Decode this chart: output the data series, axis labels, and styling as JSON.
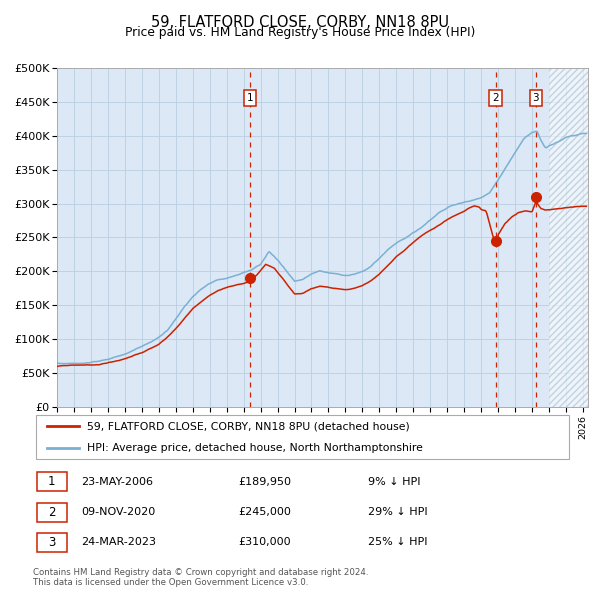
{
  "title": "59, FLATFORD CLOSE, CORBY, NN18 8PU",
  "subtitle": "Price paid vs. HM Land Registry's House Price Index (HPI)",
  "legend_line1": "59, FLATFORD CLOSE, CORBY, NN18 8PU (detached house)",
  "legend_line2": "HPI: Average price, detached house, North Northamptonshire",
  "footer1": "Contains HM Land Registry data © Crown copyright and database right 2024.",
  "footer2": "This data is licensed under the Open Government Licence v3.0.",
  "transactions": [
    {
      "num": 1,
      "date": "23-MAY-2006",
      "price": 189950,
      "pct": "9%",
      "year": 2006.38
    },
    {
      "num": 2,
      "date": "09-NOV-2020",
      "price": 245000,
      "pct": "29%",
      "year": 2020.86
    },
    {
      "num": 3,
      "date": "24-MAR-2023",
      "price": 310000,
      "pct": "25%",
      "year": 2023.23
    }
  ],
  "hpi_color": "#7ab0d4",
  "price_color": "#cc2200",
  "bg_color": "#dce8f5",
  "grid_color": "#b8cfe0",
  "vline_color": "#cc2200",
  "ylim": [
    0,
    500000
  ],
  "xlim_start": 1995.0,
  "xlim_end": 2026.3,
  "hatch_start": 2024.0
}
